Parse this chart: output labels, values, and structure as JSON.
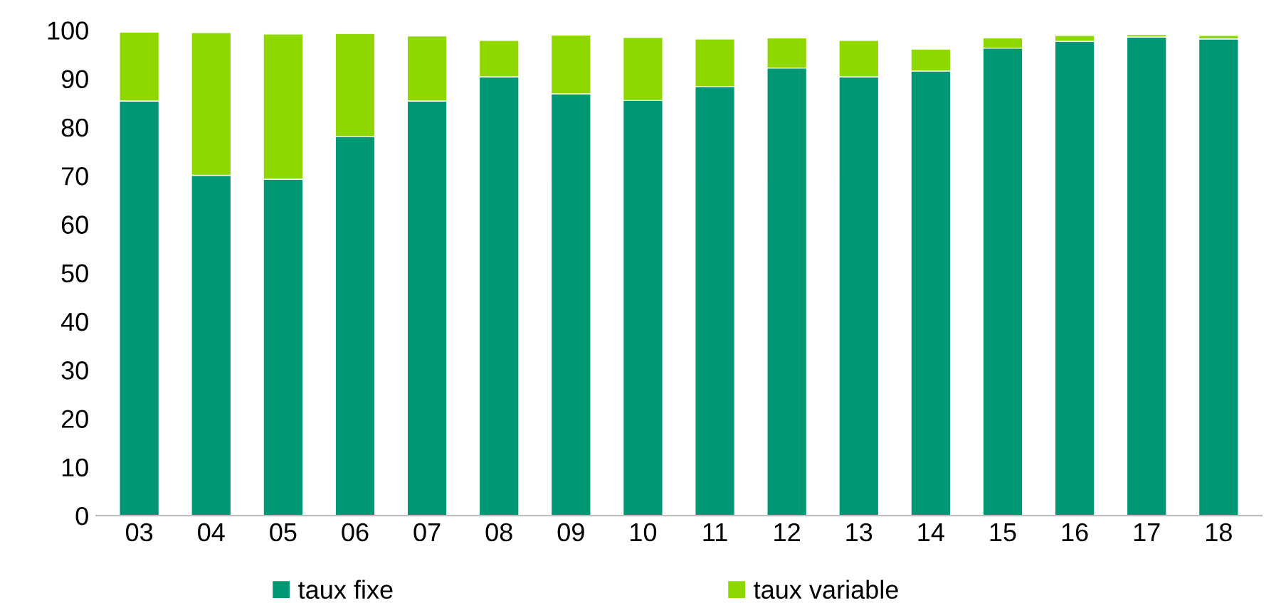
{
  "chart_data": {
    "type": "bar",
    "stacked": true,
    "categories": [
      "03",
      "04",
      "05",
      "06",
      "07",
      "08",
      "09",
      "10",
      "11",
      "12",
      "13",
      "14",
      "15",
      "16",
      "17",
      "18"
    ],
    "series": [
      {
        "name": "taux fixe",
        "color": "#009774",
        "values": [
          85.4,
          70.1,
          69.3,
          78.1,
          85.4,
          90.4,
          86.9,
          85.5,
          88.4,
          92.2,
          90.4,
          91.6,
          96.3,
          97.7,
          98.6,
          98.2
        ]
      },
      {
        "name": "taux variable",
        "color": "#8ed800",
        "values": [
          14.2,
          29.4,
          29.9,
          21.2,
          13.4,
          7.5,
          12.1,
          13.0,
          9.8,
          6.2,
          7.5,
          4.5,
          2.1,
          1.2,
          0.5,
          0.7
        ]
      }
    ],
    "ylim": [
      0,
      100
    ],
    "yticks": [
      0,
      10,
      20,
      30,
      40,
      50,
      60,
      70,
      80,
      90,
      100
    ],
    "grid": false,
    "legend": "bottom"
  }
}
